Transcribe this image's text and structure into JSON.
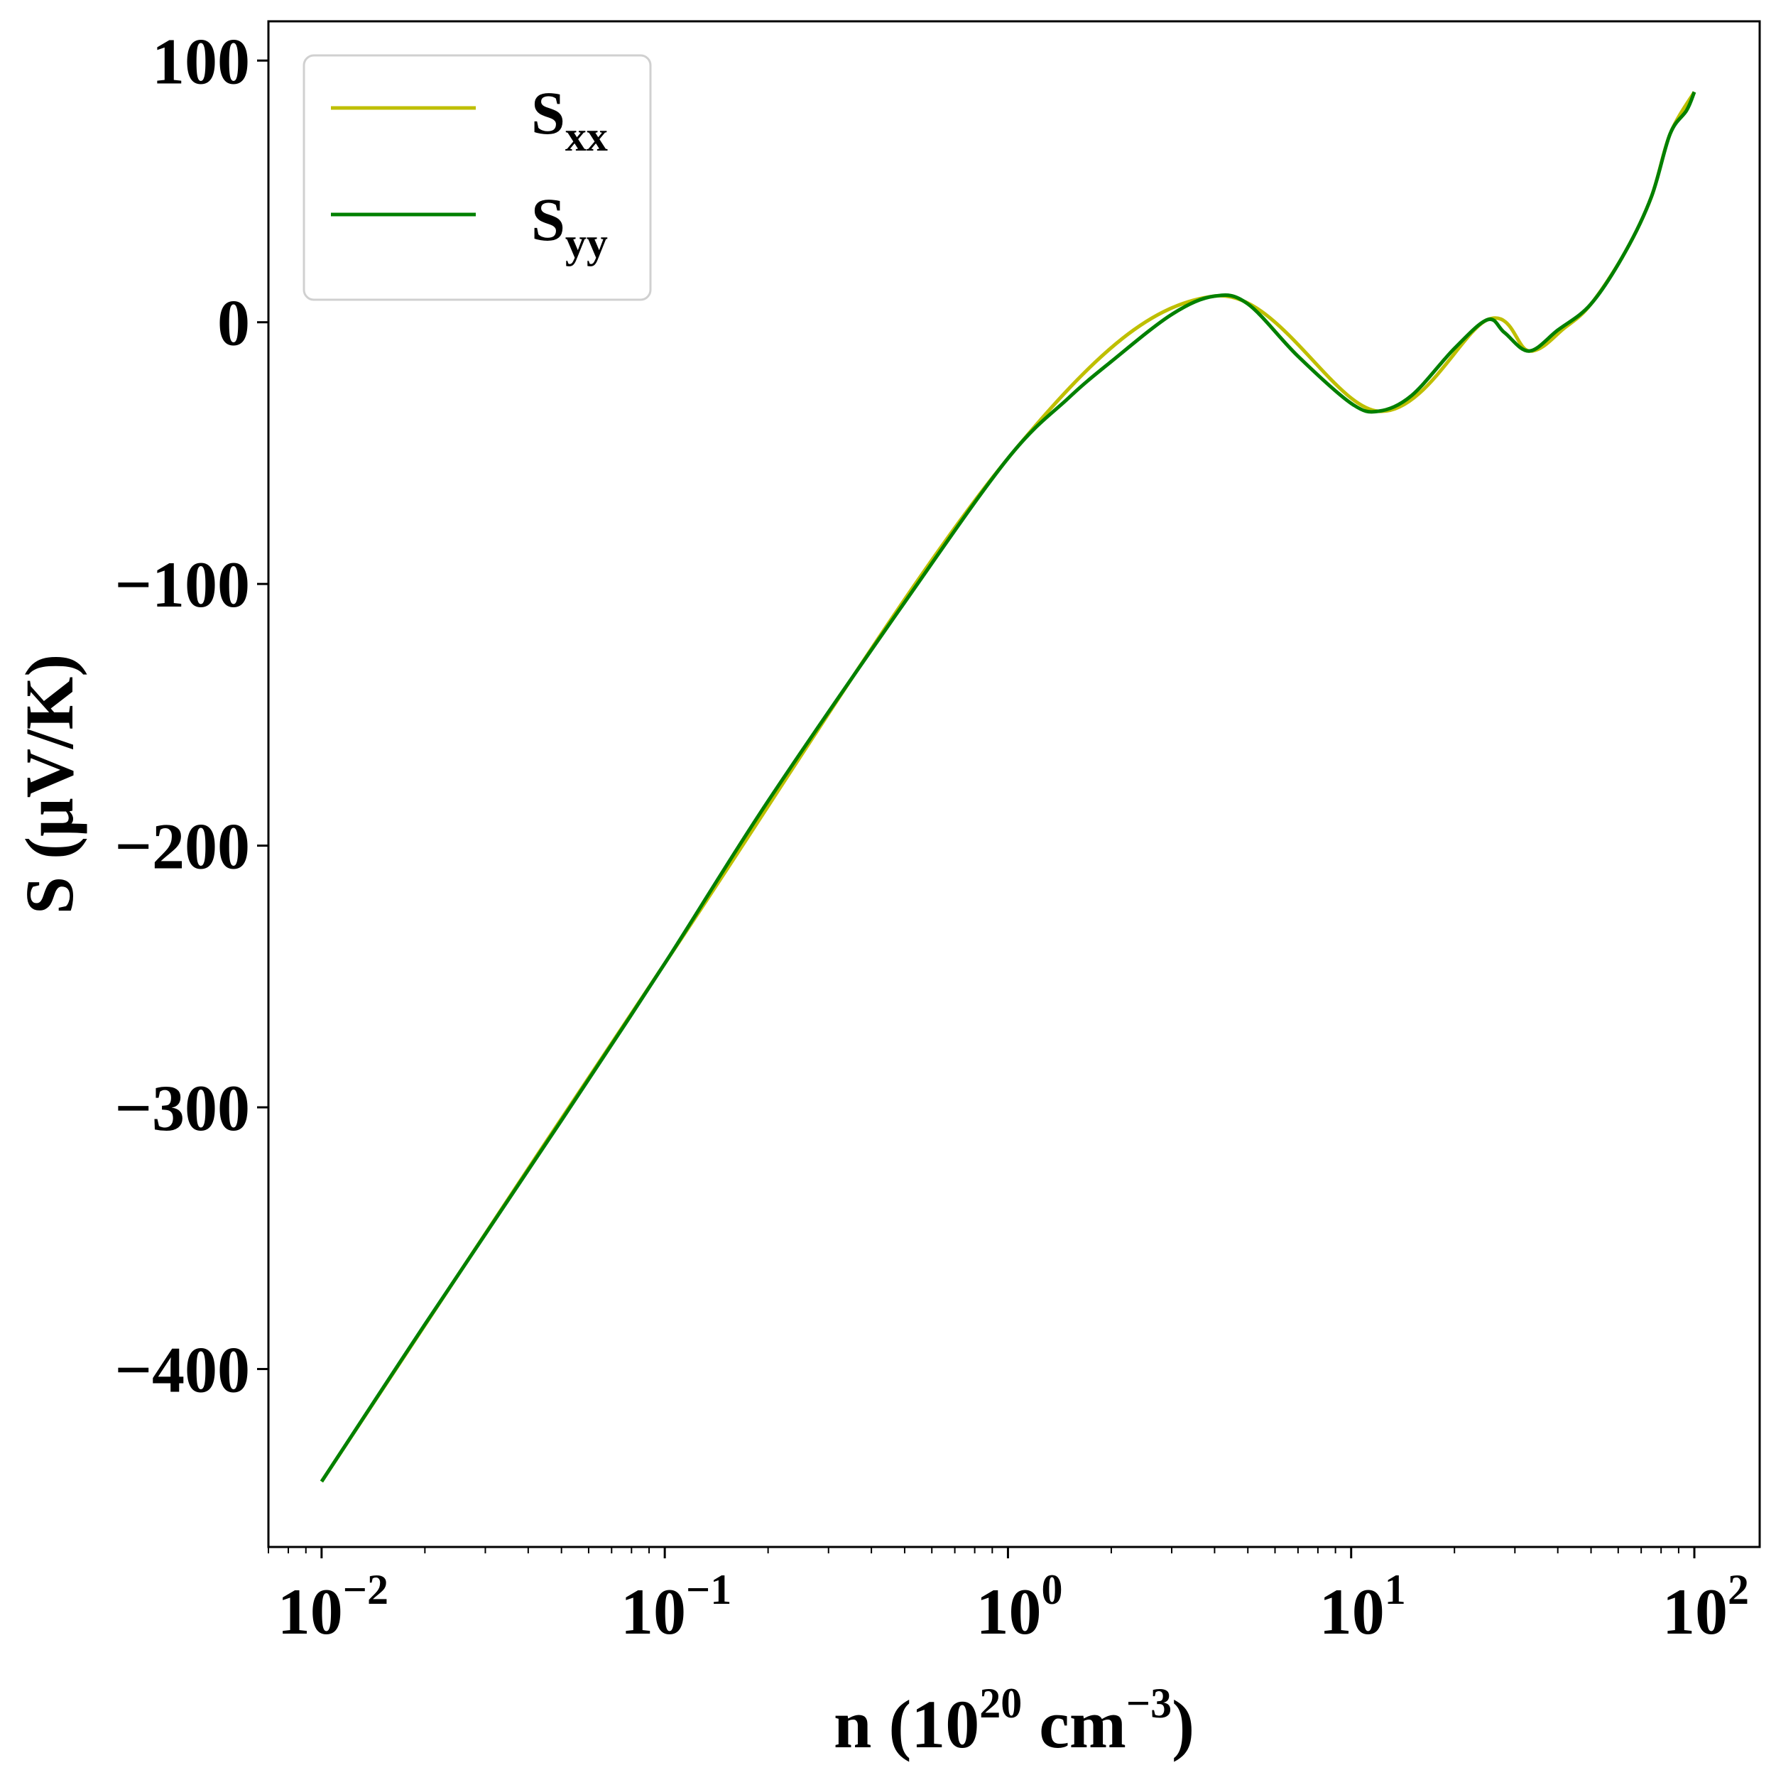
{
  "chart_data": {
    "type": "line",
    "xscale": "log",
    "xlim": [
      0.007,
      155
    ],
    "ylim": [
      -468,
      115
    ],
    "xticks": [
      {
        "value": 0.01,
        "base": "10",
        "exp": "−2"
      },
      {
        "value": 0.1,
        "base": "10",
        "exp": "−1"
      },
      {
        "value": 1,
        "base": "10",
        "exp": "0"
      },
      {
        "value": 10,
        "base": "10",
        "exp": "1"
      },
      {
        "value": 100,
        "base": "10",
        "exp": "2"
      }
    ],
    "yticks": [
      {
        "value": 100,
        "label": "100"
      },
      {
        "value": 0,
        "label": "0"
      },
      {
        "value": -100,
        "label": "−100"
      },
      {
        "value": -200,
        "label": "−200"
      },
      {
        "value": -300,
        "label": "−300"
      },
      {
        "value": -400,
        "label": "−400"
      }
    ],
    "xlabel": {
      "main": "n (10",
      "sup1": "20",
      "mid": " cm",
      "sup2": "−3",
      "end": ")"
    },
    "ylabel": "S (μV/K)",
    "legend_position": "upper-left",
    "series": [
      {
        "name": {
          "main": "S",
          "sub": "xx"
        },
        "color": "#bfbf00",
        "x": [
          0.01,
          0.1,
          1,
          4,
          12,
          25,
          33,
          42,
          50,
          63,
          75,
          85,
          100
        ],
        "y": [
          -443,
          -245,
          -52,
          10,
          -34,
          1,
          -11,
          -2,
          7,
          27,
          48,
          72,
          88
        ]
      },
      {
        "name": {
          "main": "S",
          "sub": "yy"
        },
        "color": "#008000",
        "x": [
          0.01,
          0.02,
          0.05,
          0.1,
          0.2,
          0.5,
          1,
          1.5,
          2,
          3,
          4,
          5,
          7,
          10,
          12,
          15,
          20,
          25,
          28,
          33,
          40,
          50,
          63,
          75,
          85,
          95,
          100
        ],
        "y": [
          -443,
          -383,
          -305,
          -245,
          -183,
          -107,
          -52,
          -29,
          -15,
          3,
          10,
          7,
          -13,
          -31,
          -34,
          -28,
          -10,
          1,
          -4,
          -11,
          -3,
          7,
          27,
          48,
          72,
          81,
          88
        ]
      }
    ]
  }
}
